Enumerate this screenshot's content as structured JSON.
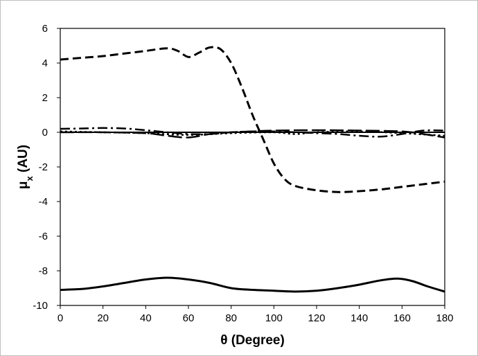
{
  "chart_data": {
    "type": "line",
    "title": "",
    "xlabel": "θ (Degree)",
    "ylabel": "μx (AU)",
    "ylabel_main": "μ",
    "ylabel_sub": "x",
    "ylabel_tail": " (AU)",
    "xlim": [
      0,
      180
    ],
    "ylim": [
      -10,
      6
    ],
    "xticks": [
      0,
      20,
      40,
      60,
      80,
      100,
      120,
      140,
      160,
      180
    ],
    "yticks": [
      -10,
      -8,
      -6,
      -4,
      -2,
      0,
      2,
      4,
      6
    ],
    "grid": false,
    "legend": "none",
    "series": [
      {
        "style": "solid",
        "color": "#000000",
        "width": 3,
        "x": [
          0,
          10,
          20,
          30,
          40,
          50,
          60,
          70,
          80,
          90,
          100,
          110,
          120,
          130,
          140,
          150,
          158,
          165,
          172,
          180
        ],
        "y": [
          -9.1,
          -9.05,
          -8.9,
          -8.7,
          -8.5,
          -8.4,
          -8.5,
          -8.7,
          -9.0,
          -9.1,
          -9.15,
          -9.2,
          -9.15,
          -9.0,
          -8.8,
          -8.55,
          -8.45,
          -8.6,
          -8.9,
          -9.2
        ]
      },
      {
        "style": "dashed",
        "color": "#000000",
        "width": 3,
        "x": [
          0,
          10,
          20,
          30,
          40,
          50,
          55,
          60,
          65,
          70,
          75,
          80,
          85,
          90,
          95,
          100,
          105,
          110,
          120,
          130,
          140,
          150,
          160,
          170,
          180
        ],
        "y": [
          4.2,
          4.3,
          4.4,
          4.55,
          4.7,
          4.85,
          4.7,
          4.35,
          4.6,
          4.9,
          4.8,
          4.0,
          2.6,
          1.0,
          -0.4,
          -1.8,
          -2.7,
          -3.1,
          -3.35,
          -3.45,
          -3.4,
          -3.3,
          -3.15,
          -3.0,
          -2.85
        ]
      },
      {
        "style": "solid",
        "color": "#000000",
        "width": 2,
        "x": [
          0,
          20,
          40,
          60,
          80,
          100,
          120,
          140,
          160,
          180
        ],
        "y": [
          0.0,
          0.0,
          0.0,
          0.0,
          0.0,
          0.0,
          0.0,
          0.0,
          0.0,
          0.0
        ]
      },
      {
        "style": "dashdot",
        "color": "#000000",
        "width": 2.5,
        "x": [
          0,
          10,
          20,
          30,
          40,
          50,
          60,
          70,
          80,
          90,
          100,
          110,
          120,
          130,
          140,
          150,
          160,
          170,
          180
        ],
        "y": [
          0.2,
          0.22,
          0.25,
          0.22,
          0.12,
          0.0,
          -0.1,
          -0.1,
          0.0,
          0.05,
          0.05,
          0.0,
          -0.05,
          -0.1,
          -0.2,
          -0.25,
          -0.1,
          0.1,
          0.1
        ]
      },
      {
        "style": "longdash",
        "color": "#000000",
        "width": 2.5,
        "x": [
          0,
          20,
          40,
          50,
          60,
          70,
          80,
          90,
          100,
          120,
          140,
          160,
          170,
          180
        ],
        "y": [
          0.0,
          0.0,
          -0.05,
          -0.2,
          -0.3,
          -0.1,
          0.0,
          0.05,
          0.1,
          0.12,
          0.1,
          0.05,
          -0.1,
          -0.3
        ]
      },
      {
        "style": "dotted",
        "color": "#000000",
        "width": 2.5,
        "x": [
          0,
          20,
          40,
          60,
          80,
          100,
          110,
          120,
          140,
          160,
          180
        ],
        "y": [
          0.05,
          0.0,
          -0.05,
          -0.15,
          -0.05,
          0.0,
          -0.1,
          0.0,
          0.05,
          -0.05,
          -0.2
        ]
      }
    ]
  }
}
